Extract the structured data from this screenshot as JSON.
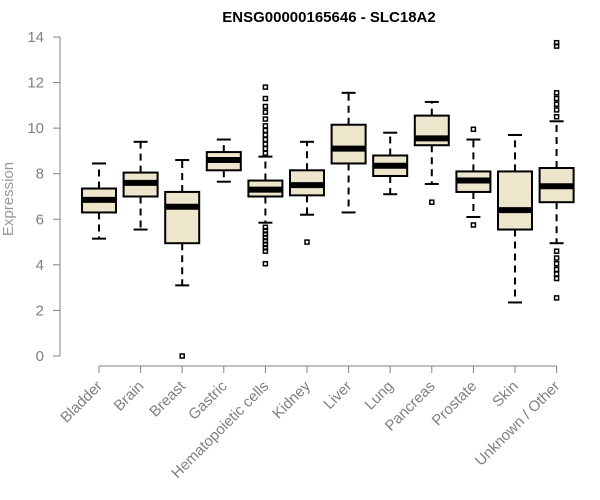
{
  "chart_data": {
    "type": "boxplot",
    "title": "ENSG00000165646 - SLC18A2",
    "ylabel": "Expression",
    "xlabel": "",
    "ylim": [
      0,
      14
    ],
    "yticks": [
      0,
      2,
      4,
      6,
      8,
      10,
      12,
      14
    ],
    "grid": false,
    "box_fill": "#ede6cc",
    "categories": [
      "Bladder",
      "Brain",
      "Breast",
      "Gastric",
      "Hematopoietic cells",
      "Kidney",
      "Liver",
      "Lung",
      "Pancreas",
      "Prostate",
      "Skin",
      "Unknown / Other"
    ],
    "boxes": [
      {
        "whisker_low": 5.15,
        "q1": 6.3,
        "median": 6.85,
        "q3": 7.35,
        "whisker_high": 8.45,
        "outliers": []
      },
      {
        "whisker_low": 5.55,
        "q1": 7.0,
        "median": 7.6,
        "q3": 8.05,
        "whisker_high": 9.4,
        "outliers": []
      },
      {
        "whisker_low": 3.1,
        "q1": 4.95,
        "median": 6.55,
        "q3": 7.2,
        "whisker_high": 8.6,
        "outliers": [
          0.0
        ]
      },
      {
        "whisker_low": 7.65,
        "q1": 8.15,
        "median": 8.6,
        "q3": 8.95,
        "whisker_high": 9.5,
        "outliers": []
      },
      {
        "whisker_low": 5.85,
        "q1": 7.0,
        "median": 7.3,
        "q3": 7.7,
        "whisker_high": 8.75,
        "outliers": [
          4.05,
          4.6,
          4.75,
          4.9,
          5.05,
          5.2,
          5.35,
          5.5,
          5.65,
          8.9,
          9.1,
          9.3,
          9.5,
          9.7,
          9.9,
          10.1,
          10.4,
          10.7,
          10.95,
          11.3,
          11.8
        ]
      },
      {
        "whisker_low": 6.2,
        "q1": 7.05,
        "median": 7.5,
        "q3": 8.15,
        "whisker_high": 9.4,
        "outliers": [
          5.0
        ]
      },
      {
        "whisker_low": 6.3,
        "q1": 8.45,
        "median": 9.1,
        "q3": 10.15,
        "whisker_high": 11.55,
        "outliers": []
      },
      {
        "whisker_low": 7.1,
        "q1": 7.9,
        "median": 8.35,
        "q3": 8.8,
        "whisker_high": 9.8,
        "outliers": []
      },
      {
        "whisker_low": 7.55,
        "q1": 9.25,
        "median": 9.55,
        "q3": 10.55,
        "whisker_high": 11.15,
        "outliers": [
          6.75
        ]
      },
      {
        "whisker_low": 6.1,
        "q1": 7.2,
        "median": 7.7,
        "q3": 8.1,
        "whisker_high": 9.5,
        "outliers": [
          5.75,
          9.95
        ]
      },
      {
        "whisker_low": 2.35,
        "q1": 5.55,
        "median": 6.4,
        "q3": 8.1,
        "whisker_high": 9.7,
        "outliers": []
      },
      {
        "whisker_low": 4.95,
        "q1": 6.75,
        "median": 7.45,
        "q3": 8.25,
        "whisker_high": 10.3,
        "outliers": [
          2.55,
          3.4,
          3.6,
          3.8,
          4.05,
          4.3,
          4.6,
          10.5,
          10.8,
          11.05,
          11.3,
          11.55,
          13.6,
          13.75
        ]
      }
    ]
  }
}
